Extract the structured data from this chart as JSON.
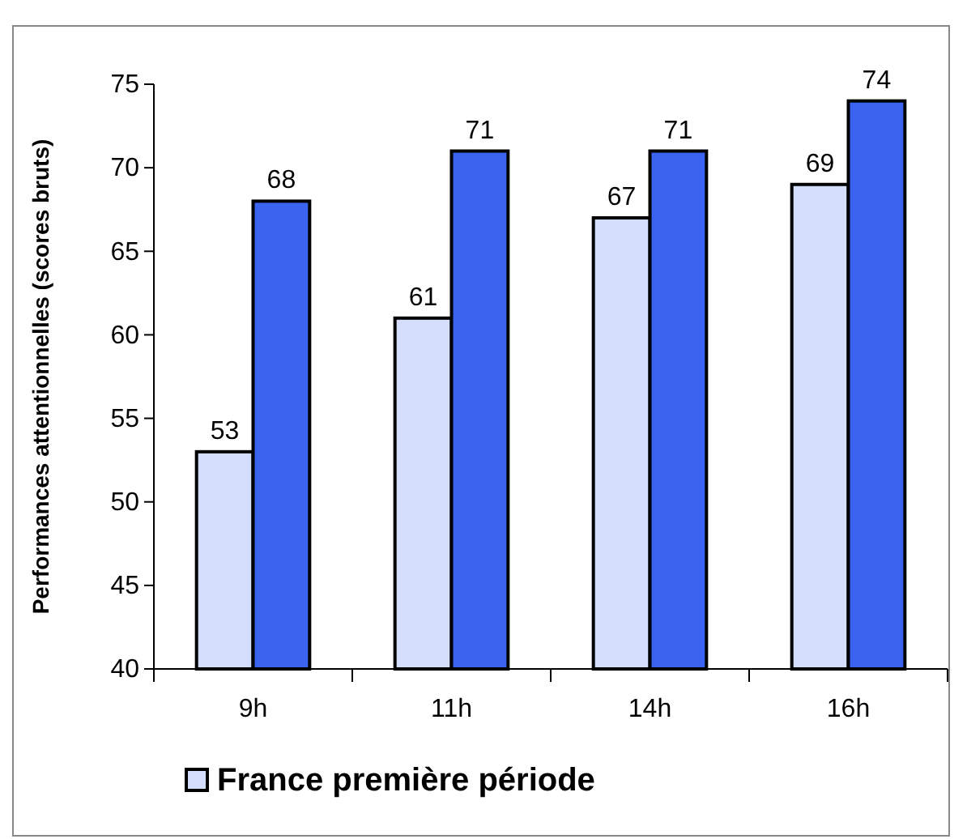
{
  "chart_data": {
    "type": "bar",
    "ylabel": "Performances attentionnelles (scores bruts)",
    "categories": [
      "9h",
      "11h",
      "14h",
      "16h"
    ],
    "series": [
      {
        "name": "France première période",
        "color": "#d4defc",
        "values": [
          53,
          61,
          67,
          69
        ]
      },
      {
        "color": "#3a63f0",
        "values": [
          68,
          71,
          71,
          74
        ]
      }
    ],
    "ylim": [
      40,
      75
    ],
    "yticks": [
      40,
      45,
      50,
      55,
      60,
      65,
      70,
      75
    ],
    "data_labels": true,
    "legend": "bottom",
    "grid": false
  }
}
